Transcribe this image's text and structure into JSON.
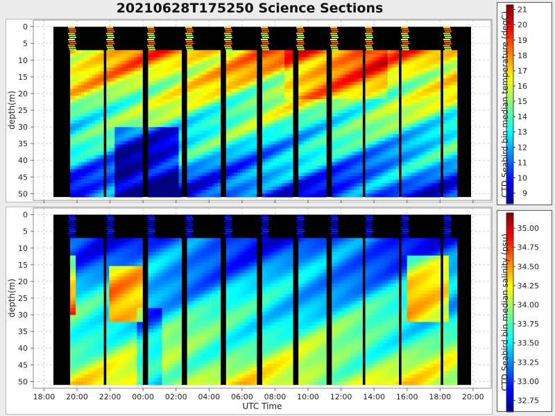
{
  "title": "20210628T175250 Science Sections",
  "xaxis": {
    "label": "UTC Time",
    "ticks": [
      "18:00",
      "20:00",
      "22:00",
      "00:00",
      "02:00",
      "04:00",
      "06:00",
      "08:00",
      "10:00",
      "12:00",
      "14:00",
      "16:00",
      "18:00",
      "20:00"
    ]
  },
  "chart_data": [
    {
      "type": "heatmap",
      "variable": "temperature",
      "ylabel": "depth(m)",
      "yticks": [
        0,
        5,
        10,
        15,
        20,
        25,
        30,
        35,
        40,
        45,
        50
      ],
      "ylim": [
        52,
        -2
      ],
      "colorbar": {
        "label": "CTD Seabird bin median temperature (degC)",
        "min": 8.3,
        "max": 21.3,
        "ticks": [
          9,
          10,
          11,
          12,
          13,
          14,
          15,
          16,
          17,
          18,
          19,
          20,
          21
        ],
        "colormap": "jet"
      },
      "grid": true
    },
    {
      "type": "heatmap",
      "variable": "salinity",
      "ylabel": "depth(m)",
      "yticks": [
        0,
        5,
        10,
        15,
        20,
        25,
        30,
        35,
        40,
        45,
        50
      ],
      "ylim": [
        52,
        -2
      ],
      "colorbar": {
        "label": "CTD Seabird bin median salinity (psu)",
        "min": 32.6,
        "max": 35.2,
        "ticks": [
          "32.75",
          "33.00",
          "33.25",
          "33.50",
          "33.75",
          "34.00",
          "34.25",
          "34.50",
          "34.75",
          "35.00"
        ],
        "colormap": "jet"
      },
      "grid": true
    }
  ]
}
